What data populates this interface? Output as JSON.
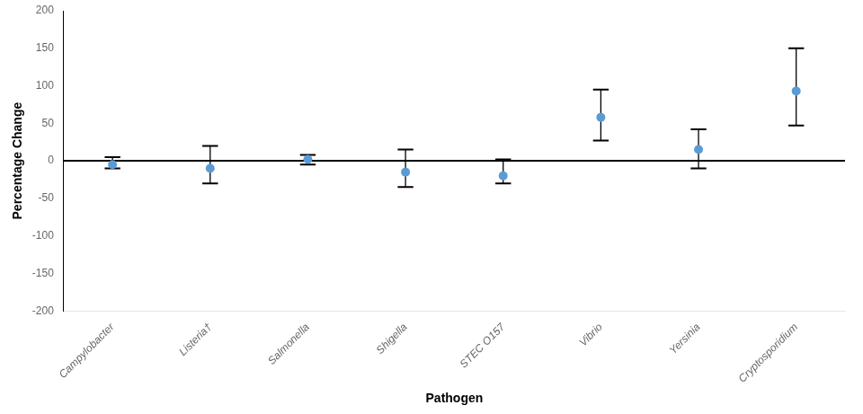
{
  "chart_data": {
    "type": "scatter",
    "categories": [
      "Campylobacter",
      "Listeria†",
      "Salmonella",
      "Shigella",
      "STEC O157",
      "Vibrio",
      "Yersinia",
      "Cryptosporidium"
    ],
    "values": [
      -5,
      -10,
      2,
      -15,
      -20,
      58,
      15,
      93
    ],
    "ci_low": [
      -10,
      -30,
      -5,
      -35,
      -30,
      27,
      -10,
      47
    ],
    "ci_high": [
      5,
      20,
      8,
      15,
      2,
      95,
      42,
      150
    ],
    "color": "#5B9BD5",
    "hline": 0,
    "xlabel": "Pathogen",
    "ylabel": "Percentage Change",
    "ylim": [
      -200,
      200
    ],
    "yticks": [
      -200,
      -150,
      -100,
      -50,
      0,
      50,
      100,
      150,
      200
    ],
    "grid": false
  }
}
